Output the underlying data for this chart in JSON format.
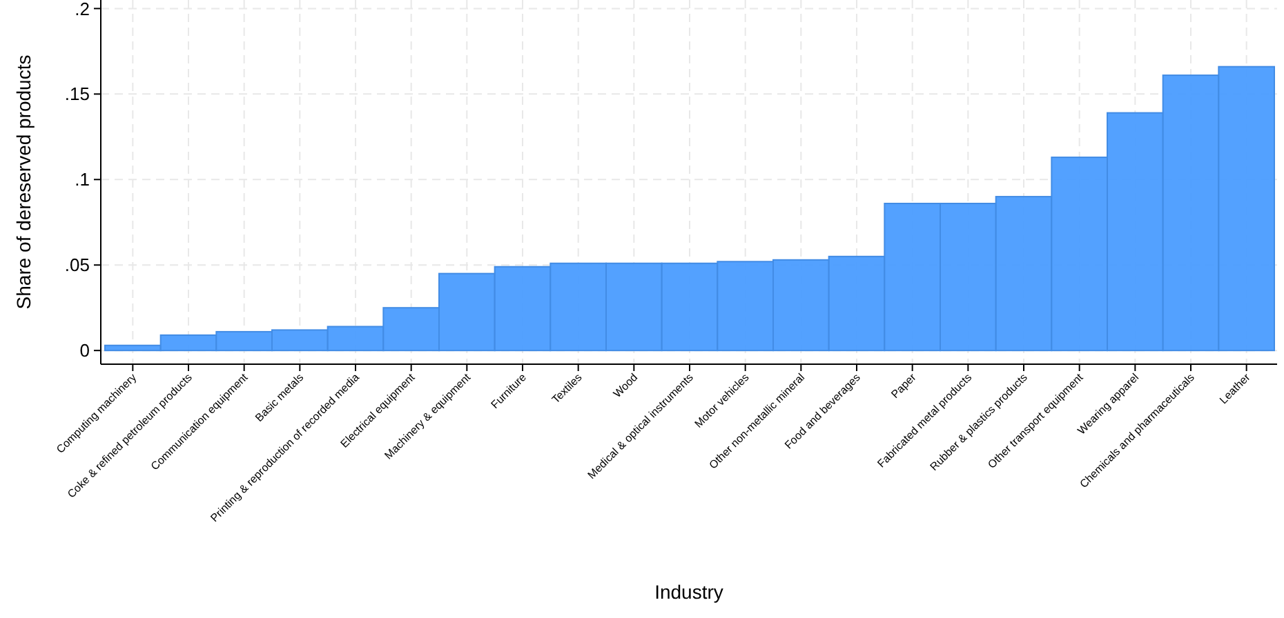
{
  "chart_data": {
    "type": "bar",
    "xlabel": "Industry",
    "ylabel": "Share of dereserved products",
    "categories": [
      "Computing machinery",
      "Coke & refined petroleum products",
      "Communication equipment",
      "Basic metals",
      "Printing & reproduction of recorded media",
      "Electrical equipment",
      "Machinery & equipment",
      "Furniture",
      "Textiles",
      "Wood",
      "Medical & optical instruments",
      "Motor vehicles",
      "Other non-metallic mineral",
      "Food and beverages",
      "Paper",
      "Fabricated metal products",
      "Rubber & plastics products",
      "Other transport equipment",
      "Wearing apparel",
      "Chemicals and pharmaceuticals",
      "Leather"
    ],
    "values": [
      0.003,
      0.009,
      0.011,
      0.012,
      0.014,
      0.025,
      0.045,
      0.049,
      0.051,
      0.051,
      0.051,
      0.052,
      0.053,
      0.055,
      0.086,
      0.086,
      0.09,
      0.113,
      0.139,
      0.161,
      0.166
    ],
    "color": "#4a9cff",
    "ylim": [
      -0.008,
      0.205
    ],
    "yticks": [
      {
        "value": 0,
        "label": "0"
      },
      {
        "value": 0.05,
        "label": ".05"
      },
      {
        "value": 0.1,
        "label": ".1"
      },
      {
        "value": 0.15,
        "label": ".15"
      },
      {
        "value": 0.2,
        "label": ".2"
      }
    ],
    "grid": true
  }
}
